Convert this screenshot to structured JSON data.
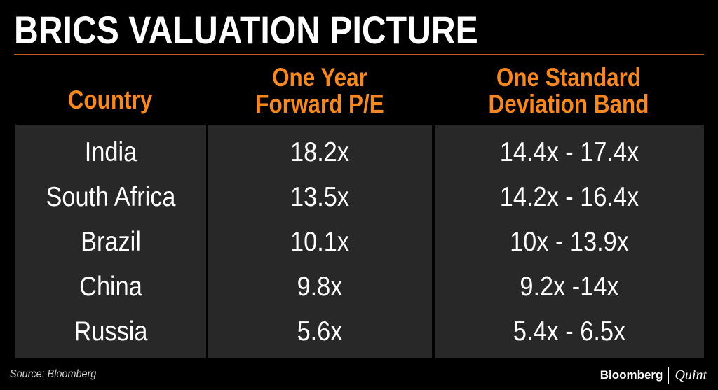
{
  "title": "BRICS VALUATION PICTURE",
  "headers": {
    "country": "Country",
    "pe_line1": "One Year",
    "pe_line2": "Forward P/E",
    "band_line1": "One Standard",
    "band_line2": "Deviation Band"
  },
  "rows": [
    {
      "country": "India",
      "pe": "18.2x",
      "band": "14.4x - 17.4x"
    },
    {
      "country": "South Africa",
      "pe": "13.5x",
      "band": "14.2x - 16.4x"
    },
    {
      "country": "Brazil",
      "pe": "10.1x",
      "band": "10x - 13.9x"
    },
    {
      "country": "China",
      "pe": "9.8x",
      "band": "9.2x -14x"
    },
    {
      "country": "Russia",
      "pe": "5.6x",
      "band": "5.4x - 6.5x"
    }
  ],
  "footer": {
    "source": "Source: Bloomberg",
    "logo_brand": "Bloomberg",
    "logo_suffix": "Quint"
  },
  "colors": {
    "accent": "#f7871f",
    "background": "#000000",
    "panel": "#282828",
    "rule": "#c85a1c"
  },
  "chart_data": {
    "type": "table",
    "title": "BRICS VALUATION PICTURE",
    "columns": [
      "Country",
      "One Year Forward P/E",
      "One Standard Deviation Band"
    ],
    "rows": [
      [
        "India",
        "18.2x",
        "14.4x - 17.4x"
      ],
      [
        "South Africa",
        "13.5x",
        "14.2x - 16.4x"
      ],
      [
        "Brazil",
        "10.1x",
        "10x - 13.9x"
      ],
      [
        "China",
        "9.8x",
        "9.2x -14x"
      ],
      [
        "Russia",
        "5.6x",
        "5.4x - 6.5x"
      ]
    ],
    "forward_pe": [
      18.2,
      13.5,
      10.1,
      9.8,
      5.6
    ],
    "band_low": [
      14.4,
      14.2,
      10,
      9.2,
      5.4
    ],
    "band_high": [
      17.4,
      16.4,
      13.9,
      14,
      6.5
    ]
  }
}
